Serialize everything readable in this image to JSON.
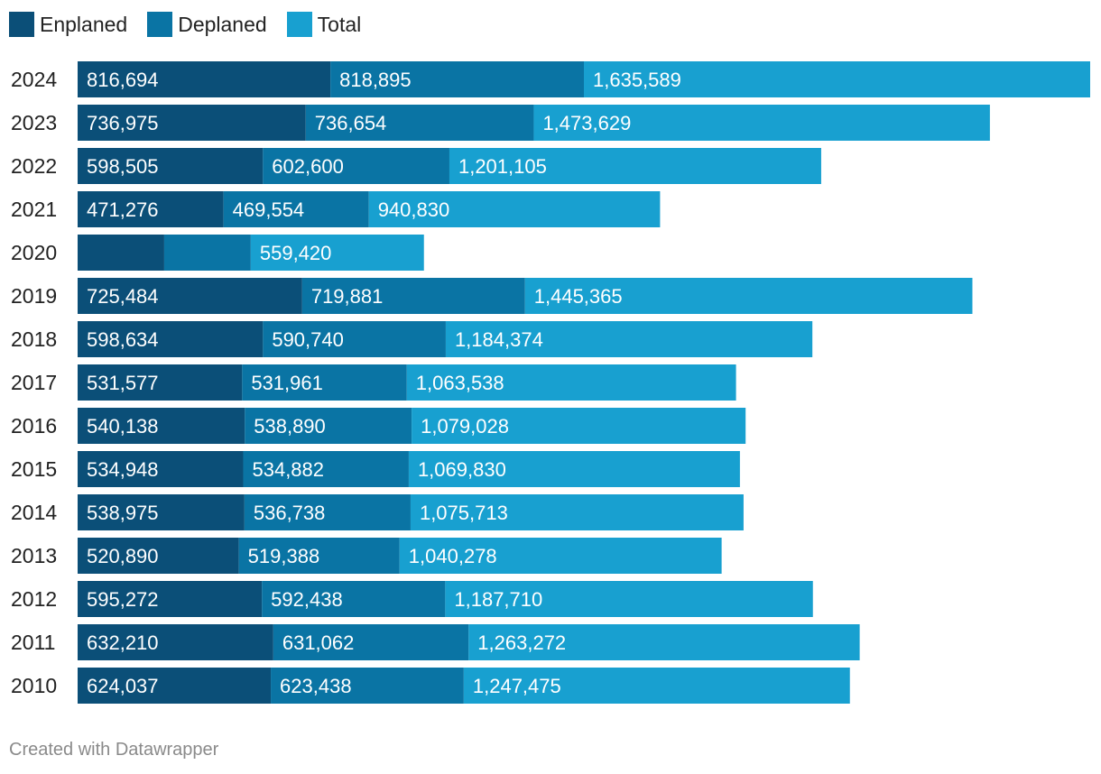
{
  "legend": [
    {
      "label": "Enplaned",
      "color": "#0b4f78"
    },
    {
      "label": "Deplaned",
      "color": "#0a74a4"
    },
    {
      "label": "Total",
      "color": "#18a0d0"
    }
  ],
  "footer": "Created with Datawrapper",
  "chart_data": {
    "type": "bar",
    "orientation": "horizontal-stacked",
    "series_names": [
      "Enplaned",
      "Deplaned",
      "Total"
    ],
    "colors": [
      "#0b4f78",
      "#0a74a4",
      "#18a0d0"
    ],
    "xlim": [
      0,
      3271178
    ],
    "rows": [
      {
        "year": "2024",
        "values": [
          816694,
          818895,
          1635589
        ],
        "labels": [
          "816,694",
          "818,895",
          "1,635,589"
        ]
      },
      {
        "year": "2023",
        "values": [
          736975,
          736654,
          1473629
        ],
        "labels": [
          "736,975",
          "736,654",
          "1,473,629"
        ]
      },
      {
        "year": "2022",
        "values": [
          598505,
          602600,
          1201105
        ],
        "labels": [
          "598,505",
          "602,600",
          "1,201,105"
        ]
      },
      {
        "year": "2021",
        "values": [
          471276,
          469554,
          940830
        ],
        "labels": [
          "471,276",
          "469,554",
          "940,830"
        ]
      },
      {
        "year": "2020",
        "values": [
          279710,
          279710,
          559420
        ],
        "labels": [
          "",
          "",
          "559,420"
        ]
      },
      {
        "year": "2019",
        "values": [
          725484,
          719881,
          1445365
        ],
        "labels": [
          "725,484",
          "719,881",
          "1,445,365"
        ]
      },
      {
        "year": "2018",
        "values": [
          598634,
          590740,
          1184374
        ],
        "labels": [
          "598,634",
          "590,740",
          "1,184,374"
        ]
      },
      {
        "year": "2017",
        "values": [
          531577,
          531961,
          1063538
        ],
        "labels": [
          "531,577",
          "531,961",
          "1,063,538"
        ]
      },
      {
        "year": "2016",
        "values": [
          540138,
          538890,
          1079028
        ],
        "labels": [
          "540,138",
          "538,890",
          "1,079,028"
        ]
      },
      {
        "year": "2015",
        "values": [
          534948,
          534882,
          1069830
        ],
        "labels": [
          "534,948",
          "534,882",
          "1,069,830"
        ]
      },
      {
        "year": "2014",
        "values": [
          538975,
          536738,
          1075713
        ],
        "labels": [
          "538,975",
          "536,738",
          "1,075,713"
        ]
      },
      {
        "year": "2013",
        "values": [
          520890,
          519388,
          1040278
        ],
        "labels": [
          "520,890",
          "519,388",
          "1,040,278"
        ]
      },
      {
        "year": "2012",
        "values": [
          595272,
          592438,
          1187710
        ],
        "labels": [
          "595,272",
          "592,438",
          "1,187,710"
        ]
      },
      {
        "year": "2011",
        "values": [
          632210,
          631062,
          1263272
        ],
        "labels": [
          "632,210",
          "631,062",
          "1,263,272"
        ]
      },
      {
        "year": "2010",
        "values": [
          624037,
          623438,
          1247475
        ],
        "labels": [
          "624,037",
          "623,438",
          "1,247,475"
        ]
      }
    ]
  }
}
